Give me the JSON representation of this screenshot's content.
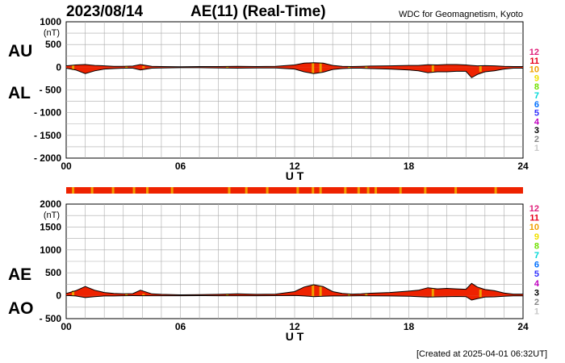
{
  "header": {
    "date": "2023/08/14",
    "title": "AE(11) (Real-Time)",
    "source": "WDC for Geomagnetism, Kyoto"
  },
  "footer": {
    "created": "[Created at 2025-04-01 06:32UT]"
  },
  "legend": {
    "items": [
      {
        "label": "12",
        "color": "#e0207a"
      },
      {
        "label": "11",
        "color": "#e8001c"
      },
      {
        "label": "10",
        "color": "#f0a000"
      },
      {
        "label": "9",
        "color": "#f0e000"
      },
      {
        "label": "8",
        "color": "#70e000"
      },
      {
        "label": "7",
        "color": "#00d8d8"
      },
      {
        "label": "6",
        "color": "#0070ff"
      },
      {
        "label": "5",
        "color": "#3030ff"
      },
      {
        "label": "4",
        "color": "#c000c0"
      },
      {
        "label": "3",
        "color": "#000000"
      },
      {
        "label": "2",
        "color": "#888888"
      },
      {
        "label": "1",
        "color": "#c8c8c8"
      }
    ]
  },
  "colors": {
    "fill_main": "#ee2200",
    "fill_alt": "#f0a000",
    "line": "#000000",
    "grid": "#aaaaaa"
  },
  "chart_data": [
    {
      "type": "area",
      "name": "AU/AL",
      "series_labels": [
        "AU",
        "AL"
      ],
      "ylabel": "(nT)",
      "xlabel": "U T",
      "xlim": [
        0,
        24
      ],
      "ylim": [
        -2000,
        1000
      ],
      "y_ticks": [
        1000,
        500,
        0,
        -500,
        -1000,
        -1500,
        -2000
      ],
      "y_tick_labels": [
        "1000",
        "500",
        "0",
        "- 500",
        "- 1000",
        "- 1500",
        "- 2000"
      ],
      "x_ticks": [
        0,
        6,
        12,
        18,
        24
      ],
      "x_tick_labels": [
        "00",
        "06",
        "12",
        "18",
        "24"
      ],
      "x": [
        0,
        0.5,
        1,
        1.5,
        2,
        2.5,
        3,
        3.5,
        3.9,
        4.5,
        5,
        6,
        7,
        8,
        9,
        10,
        11,
        12,
        12.5,
        13,
        13.5,
        14,
        14.5,
        15,
        15.5,
        16,
        17,
        18,
        18.5,
        19,
        19.5,
        20,
        20.5,
        21,
        21.3,
        21.6,
        22,
        22.5,
        23,
        23.5,
        24
      ],
      "au": [
        30,
        50,
        60,
        40,
        30,
        20,
        20,
        25,
        60,
        20,
        15,
        10,
        15,
        15,
        20,
        15,
        20,
        50,
        90,
        100,
        90,
        40,
        20,
        15,
        20,
        25,
        30,
        40,
        40,
        55,
        50,
        60,
        60,
        50,
        40,
        30,
        35,
        30,
        20,
        15,
        15
      ],
      "al": [
        -20,
        -60,
        -140,
        -80,
        -40,
        -30,
        -20,
        -20,
        -60,
        -20,
        -15,
        -10,
        -10,
        -15,
        -20,
        -15,
        -15,
        -40,
        -100,
        -140,
        -110,
        -50,
        -30,
        -20,
        -20,
        -30,
        -40,
        -60,
        -80,
        -120,
        -100,
        -100,
        -90,
        -90,
        -230,
        -160,
        -100,
        -80,
        -40,
        -20,
        -20
      ]
    },
    {
      "type": "area",
      "name": "AE/AO",
      "series_labels": [
        "AE",
        "AO"
      ],
      "ylabel": "(nT)",
      "xlabel": "U T",
      "xlim": [
        0,
        24
      ],
      "ylim": [
        -500,
        2000
      ],
      "y_ticks": [
        2000,
        1500,
        1000,
        500,
        0,
        -500
      ],
      "y_tick_labels": [
        "2000",
        "1500",
        "1000",
        "500",
        "0",
        "- 500"
      ],
      "x_ticks": [
        0,
        6,
        12,
        18,
        24
      ],
      "x_tick_labels": [
        "00",
        "06",
        "12",
        "18",
        "24"
      ],
      "x": [
        0,
        0.5,
        1,
        1.5,
        2,
        2.5,
        3,
        3.5,
        3.9,
        4.5,
        5,
        6,
        7,
        8,
        9,
        10,
        11,
        12,
        12.5,
        13,
        13.5,
        14,
        14.5,
        15,
        15.5,
        16,
        17,
        18,
        18.5,
        19,
        19.5,
        20,
        20.5,
        21,
        21.3,
        21.6,
        22,
        22.5,
        23,
        23.5,
        24
      ],
      "ae": [
        50,
        110,
        200,
        120,
        70,
        50,
        40,
        45,
        120,
        40,
        30,
        20,
        25,
        30,
        40,
        30,
        35,
        90,
        190,
        240,
        200,
        90,
        50,
        35,
        40,
        55,
        70,
        100,
        120,
        175,
        150,
        160,
        150,
        140,
        270,
        190,
        135,
        110,
        60,
        35,
        35
      ],
      "ao": [
        5,
        -5,
        -40,
        -20,
        -5,
        -5,
        0,
        2,
        0,
        0,
        0,
        0,
        2,
        0,
        0,
        0,
        2,
        5,
        -5,
        -20,
        -10,
        -5,
        -5,
        -2,
        0,
        -2,
        -5,
        -10,
        -20,
        -30,
        -25,
        -20,
        -15,
        -20,
        -95,
        -65,
        -30,
        -25,
        -10,
        -2,
        -2
      ]
    }
  ]
}
